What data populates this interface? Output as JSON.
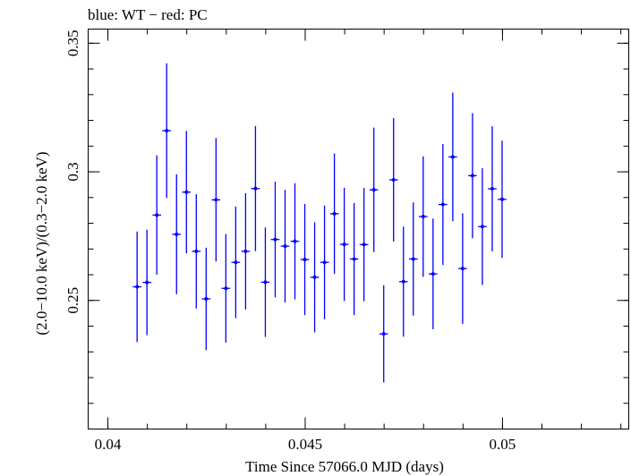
{
  "chart_data": {
    "type": "scatter",
    "title": "blue: WT − red: PC",
    "xlabel": "Time Since 57066.0 MJD (days)",
    "ylabel": "(2.0−10.0 keV)/(0.3−2.0 keV)",
    "xlim": [
      0.0395,
      0.0532
    ],
    "ylim": [
      0.2,
      0.3555
    ],
    "xticks": [
      {
        "value": 0.04,
        "label": "0.04"
      },
      {
        "value": 0.045,
        "label": "0.045"
      },
      {
        "value": 0.05,
        "label": "0.05"
      }
    ],
    "yticks": [
      {
        "value": 0.25,
        "label": "0.25"
      },
      {
        "value": 0.3,
        "label": "0.3"
      },
      {
        "value": 0.35,
        "label": "0.35"
      }
    ],
    "x_minor_step": 0.001,
    "y_minor_step": 0.01,
    "grid": false,
    "series": [
      {
        "color": "#0000ff",
        "xerr": 0.00011,
        "points": [
          {
            "x": 0.04074,
            "y": 0.2553,
            "err": 0.0215
          },
          {
            "x": 0.04099,
            "y": 0.257,
            "err": 0.0205
          },
          {
            "x": 0.04124,
            "y": 0.2832,
            "err": 0.0232
          },
          {
            "x": 0.04149,
            "y": 0.316,
            "err": 0.0262
          },
          {
            "x": 0.04174,
            "y": 0.2757,
            "err": 0.0233
          },
          {
            "x": 0.04199,
            "y": 0.2921,
            "err": 0.0238
          },
          {
            "x": 0.04224,
            "y": 0.2691,
            "err": 0.0222
          },
          {
            "x": 0.04249,
            "y": 0.2506,
            "err": 0.0199
          },
          {
            "x": 0.04274,
            "y": 0.2891,
            "err": 0.024
          },
          {
            "x": 0.04299,
            "y": 0.2547,
            "err": 0.0211
          },
          {
            "x": 0.04324,
            "y": 0.2648,
            "err": 0.0217
          },
          {
            "x": 0.04349,
            "y": 0.2691,
            "err": 0.0226
          },
          {
            "x": 0.04374,
            "y": 0.2935,
            "err": 0.0243
          },
          {
            "x": 0.04399,
            "y": 0.2571,
            "err": 0.0213
          },
          {
            "x": 0.04424,
            "y": 0.2737,
            "err": 0.0225
          },
          {
            "x": 0.04449,
            "y": 0.2711,
            "err": 0.0219
          },
          {
            "x": 0.04474,
            "y": 0.273,
            "err": 0.0226
          },
          {
            "x": 0.04499,
            "y": 0.2659,
            "err": 0.0216
          },
          {
            "x": 0.04524,
            "y": 0.259,
            "err": 0.0214
          },
          {
            "x": 0.04549,
            "y": 0.2648,
            "err": 0.0221
          },
          {
            "x": 0.04574,
            "y": 0.2837,
            "err": 0.0234
          },
          {
            "x": 0.04599,
            "y": 0.2718,
            "err": 0.022
          },
          {
            "x": 0.04624,
            "y": 0.2661,
            "err": 0.0218
          },
          {
            "x": 0.04649,
            "y": 0.2717,
            "err": 0.022
          },
          {
            "x": 0.04674,
            "y": 0.293,
            "err": 0.0242
          },
          {
            "x": 0.04699,
            "y": 0.237,
            "err": 0.0189
          },
          {
            "x": 0.04724,
            "y": 0.2969,
            "err": 0.024
          },
          {
            "x": 0.04749,
            "y": 0.2573,
            "err": 0.0214
          },
          {
            "x": 0.04774,
            "y": 0.2661,
            "err": 0.022
          },
          {
            "x": 0.04799,
            "y": 0.2826,
            "err": 0.0234
          },
          {
            "x": 0.04824,
            "y": 0.2603,
            "err": 0.0215
          },
          {
            "x": 0.04849,
            "y": 0.2873,
            "err": 0.0235
          },
          {
            "x": 0.04874,
            "y": 0.3058,
            "err": 0.025
          },
          {
            "x": 0.04899,
            "y": 0.2624,
            "err": 0.0215
          },
          {
            "x": 0.04924,
            "y": 0.2985,
            "err": 0.0243
          },
          {
            "x": 0.04949,
            "y": 0.2787,
            "err": 0.0227
          },
          {
            "x": 0.04974,
            "y": 0.2934,
            "err": 0.0243
          },
          {
            "x": 0.04999,
            "y": 0.2893,
            "err": 0.0228
          }
        ]
      }
    ]
  }
}
